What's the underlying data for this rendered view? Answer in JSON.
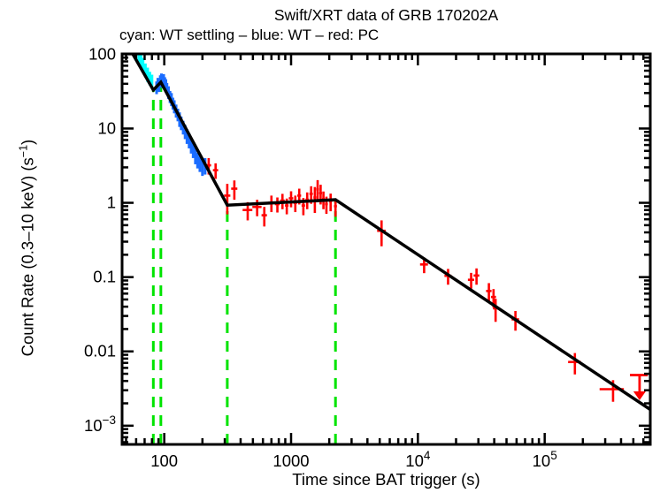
{
  "header": {
    "title": "Swift/XRT data of GRB 170202A",
    "subtitle": "cyan: WT settling – blue: WT – red: PC"
  },
  "axes": {
    "xlabel": "Time since BAT trigger (s)",
    "ylabel_pre": "Count Rate (0.3–10 keV) (s",
    "ylabel_sup": "−1",
    "ylabel_post": ")"
  },
  "colors": {
    "wt_settling": "#00ffff",
    "wt": "#1a6cff",
    "pc": "#ff0000",
    "break_lines": "#00e400",
    "fit": "#000000",
    "frame": "#000000",
    "background": "#ffffff"
  },
  "chart_data": {
    "type": "scatter",
    "scale": "log-log",
    "grid": false,
    "x_range": [
      46.5,
      680000
    ],
    "y_range": [
      0.00056,
      101
    ],
    "x_major_ticks": [
      100,
      1000,
      10000,
      100000
    ],
    "x_tick_labels": [
      {
        "base": "100",
        "exp": ""
      },
      {
        "base": "1000",
        "exp": ""
      },
      {
        "base": "10",
        "exp": "4"
      },
      {
        "base": "10",
        "exp": "5"
      }
    ],
    "y_major_ticks": [
      100,
      10,
      1,
      0.1,
      0.01,
      0.001
    ],
    "y_tick_labels": [
      {
        "base": "100",
        "exp": ""
      },
      {
        "base": "10",
        "exp": ""
      },
      {
        "base": "1",
        "exp": ""
      },
      {
        "base": "0.1",
        "exp": ""
      },
      {
        "base": "0.01",
        "exp": ""
      },
      {
        "base": "10",
        "exp": "−3"
      }
    ],
    "series": [
      {
        "name": "WT settling",
        "color_key": "wt_settling",
        "stroke": 3,
        "points": [
          [
            63,
            100,
            1.5,
            22
          ],
          [
            65.5,
            86,
            1.5,
            19
          ],
          [
            68,
            73,
            1.5,
            16
          ],
          [
            71,
            62,
            1.5,
            13
          ],
          [
            74,
            54,
            1.5,
            12
          ],
          [
            77,
            48,
            1.5,
            10
          ],
          [
            80,
            44,
            1.5,
            9
          ]
        ]
      },
      {
        "name": "WT",
        "color_key": "wt",
        "stroke": 3,
        "points": [
          [
            87,
            36,
            1.5,
            7
          ],
          [
            89,
            41,
            1.5,
            7
          ],
          [
            91,
            38,
            1.5,
            7
          ],
          [
            93,
            44,
            1.5,
            8
          ],
          [
            95,
            47,
            1.5,
            8
          ],
          [
            97,
            43,
            1.5,
            8
          ],
          [
            99,
            46,
            1.5,
            8
          ],
          [
            101,
            42,
            1.5,
            7
          ],
          [
            103,
            39,
            1.5,
            7
          ],
          [
            105,
            35,
            1.5,
            6
          ],
          [
            108,
            31,
            1.5,
            6
          ],
          [
            111,
            27,
            1.5,
            5
          ],
          [
            114,
            25,
            1.5,
            5
          ],
          [
            117,
            22,
            1.5,
            4
          ],
          [
            120,
            20,
            1.5,
            4
          ],
          [
            124,
            17.5,
            2,
            3.5
          ],
          [
            128,
            15.5,
            2,
            3
          ],
          [
            132,
            13.5,
            2,
            3
          ],
          [
            136,
            12,
            2,
            2.5
          ],
          [
            141,
            10.5,
            2,
            2.2
          ],
          [
            146,
            9.2,
            2,
            2
          ],
          [
            151,
            8,
            2.5,
            1.8
          ],
          [
            157,
            7,
            2.5,
            1.6
          ],
          [
            163,
            6,
            2.5,
            1.4
          ],
          [
            169,
            5.2,
            3,
            1.2
          ],
          [
            176,
            4.4,
            3,
            1.1
          ],
          [
            183,
            3.8,
            3.5,
            0.9
          ],
          [
            191,
            3.4,
            4,
            0.8
          ],
          [
            200,
            3.1,
            4,
            0.8
          ],
          [
            210,
            3.2,
            5,
            0.8
          ]
        ]
      },
      {
        "name": "PC",
        "color_key": "pc",
        "stroke": 2.6,
        "points": [
          [
            224,
            3.2,
            10,
            0.8
          ],
          [
            254,
            2.75,
            12,
            0.65
          ],
          [
            314,
            1.25,
            18,
            0.55
          ],
          [
            357,
            1.55,
            20,
            0.45
          ],
          [
            455,
            0.8,
            40,
            0.22
          ],
          [
            540,
            0.88,
            45,
            0.22
          ],
          [
            615,
            0.68,
            30,
            0.2
          ],
          [
            700,
            1.0,
            40,
            0.25
          ],
          [
            780,
            0.96,
            35,
            0.22
          ],
          [
            855,
            1.07,
            35,
            0.25
          ],
          [
            925,
            0.92,
            30,
            0.22
          ],
          [
            1000,
            1.15,
            40,
            0.28
          ],
          [
            1080,
            1.0,
            35,
            0.25
          ],
          [
            1160,
            1.25,
            40,
            0.3
          ],
          [
            1250,
            0.92,
            40,
            0.24
          ],
          [
            1340,
            1.1,
            40,
            0.28
          ],
          [
            1440,
            1.32,
            45,
            0.35
          ],
          [
            1540,
            1.18,
            40,
            0.45
          ],
          [
            1620,
            1.52,
            40,
            0.5
          ],
          [
            1710,
            1.35,
            45,
            0.4
          ],
          [
            1800,
            1.12,
            45,
            0.3
          ],
          [
            1900,
            0.96,
            50,
            0.25
          ],
          [
            2050,
            1.05,
            55,
            0.28
          ],
          [
            2240,
            0.9,
            60,
            0.25
          ],
          [
            5170,
            0.42,
            400,
            0.16
          ],
          [
            11200,
            0.148,
            800,
            0.035
          ],
          [
            17300,
            0.104,
            1100,
            0.025
          ],
          [
            26300,
            0.092,
            1500,
            0.022
          ],
          [
            29000,
            0.105,
            1500,
            0.026
          ],
          [
            36300,
            0.065,
            1800,
            0.018
          ],
          [
            39500,
            0.054,
            1800,
            0.015
          ],
          [
            41000,
            0.038,
            1900,
            0.013
          ],
          [
            58800,
            0.027,
            4000,
            0.008
          ],
          [
            173000,
            0.0072,
            20000,
            0.0023
          ],
          [
            346000,
            0.0031,
            75000,
            0.001
          ]
        ]
      }
    ],
    "upper_limit": {
      "series": "PC",
      "color_key": "pc",
      "t": 560000,
      "rate": 0.0048,
      "dt": 90000,
      "arrow_to": 0.0022
    },
    "fit_line": {
      "color_key": "fit",
      "stroke": 3.5,
      "vertices": [
        [
          54,
          115
        ],
        [
          82,
          33
        ],
        [
          94,
          42
        ],
        [
          314,
          0.93
        ],
        [
          2240,
          1.1
        ],
        [
          680000,
          0.00165
        ]
      ]
    },
    "break_lines": {
      "color_key": "break_lines",
      "times": [
        82,
        94,
        314,
        2240
      ],
      "tops": [
        33,
        42,
        0.93,
        1.1
      ]
    }
  }
}
